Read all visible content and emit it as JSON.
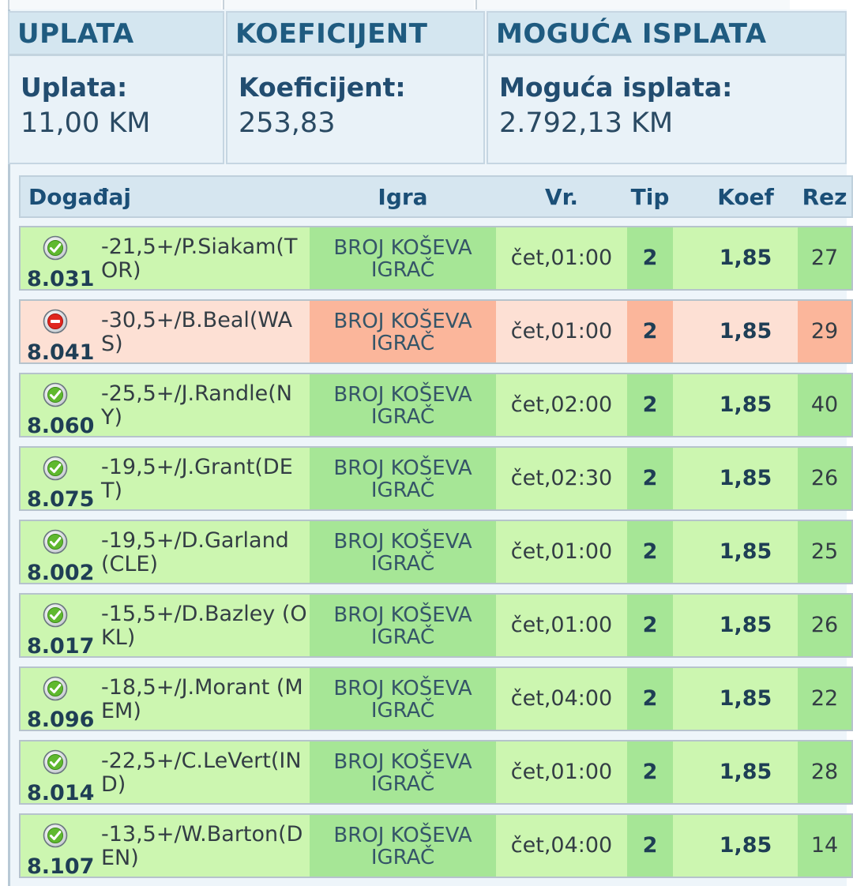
{
  "summary": {
    "uplata": {
      "header": "UPLATA",
      "label": "Uplata:",
      "value": "11,00 KM"
    },
    "koeficijent": {
      "header": "KOEFICIJENT",
      "label": "Koeficijent:",
      "value": "253,83"
    },
    "isplata": {
      "header": "MOGUĆA ISPLATA",
      "label": "Moguća isplata:",
      "value": "2.792,13 KM"
    }
  },
  "table": {
    "headers": {
      "dogadjaj": "Događaj",
      "igra": "Igra",
      "vr": "Vr.",
      "tip": "Tip",
      "koef": "Koef",
      "rez": "Rez"
    },
    "rows": [
      {
        "status": "win",
        "status_icon": "check-circle-icon",
        "id": "8.031",
        "event": "-21,5+/P.Siakam(TOR)",
        "igra": "BROJ KOŠEVA IGRAČ",
        "vr": "čet,01:00",
        "tip": "2",
        "koef": "1,85",
        "rez": "27"
      },
      {
        "status": "lose",
        "status_icon": "minus-circle-icon",
        "id": "8.041",
        "event": "-30,5+/B.Beal(WAS)",
        "igra": "BROJ KOŠEVA IGRAČ",
        "vr": "čet,01:00",
        "tip": "2",
        "koef": "1,85",
        "rez": "29"
      },
      {
        "status": "win",
        "status_icon": "check-circle-icon",
        "id": "8.060",
        "event": "-25,5+/J.Randle(NY)",
        "igra": "BROJ KOŠEVA IGRAČ",
        "vr": "čet,02:00",
        "tip": "2",
        "koef": "1,85",
        "rez": "40"
      },
      {
        "status": "win",
        "status_icon": "check-circle-icon",
        "id": "8.075",
        "event": "-19,5+/J.Grant(DET)",
        "igra": "BROJ KOŠEVA IGRAČ",
        "vr": "čet,02:30",
        "tip": "2",
        "koef": "1,85",
        "rez": "26"
      },
      {
        "status": "win",
        "status_icon": "check-circle-icon",
        "id": "8.002",
        "event": "-19,5+/D.Garland(CLE)",
        "igra": "BROJ KOŠEVA IGRAČ",
        "vr": "čet,01:00",
        "tip": "2",
        "koef": "1,85",
        "rez": "25"
      },
      {
        "status": "win",
        "status_icon": "check-circle-icon",
        "id": "8.017",
        "event": "-15,5+/D.Bazley (OKL)",
        "igra": "BROJ KOŠEVA IGRAČ",
        "vr": "čet,01:00",
        "tip": "2",
        "koef": "1,85",
        "rez": "26"
      },
      {
        "status": "win",
        "status_icon": "check-circle-icon",
        "id": "8.096",
        "event": "-18,5+/J.Morant (MEM)",
        "igra": "BROJ KOŠEVA IGRAČ",
        "vr": "čet,04:00",
        "tip": "2",
        "koef": "1,85",
        "rez": "22"
      },
      {
        "status": "win",
        "status_icon": "check-circle-icon",
        "id": "8.014",
        "event": "-22,5+/C.LeVert(IND)",
        "igra": "BROJ KOŠEVA IGRAČ",
        "vr": "čet,01:00",
        "tip": "2",
        "koef": "1,85",
        "rez": "28"
      },
      {
        "status": "win",
        "status_icon": "check-circle-icon",
        "id": "8.107",
        "event": "-13,5+/W.Barton(DEN)",
        "igra": "BROJ KOŠEVA IGRAČ",
        "vr": "čet,04:00",
        "tip": "2",
        "koef": "1,85",
        "rez": "14"
      }
    ]
  },
  "colors": {
    "win_bg": "#ccf6b0",
    "win_accent": "#a6e696",
    "lose_bg": "#fde0d4",
    "lose_accent": "#fbb69b",
    "header_text": "#1f5b80"
  }
}
